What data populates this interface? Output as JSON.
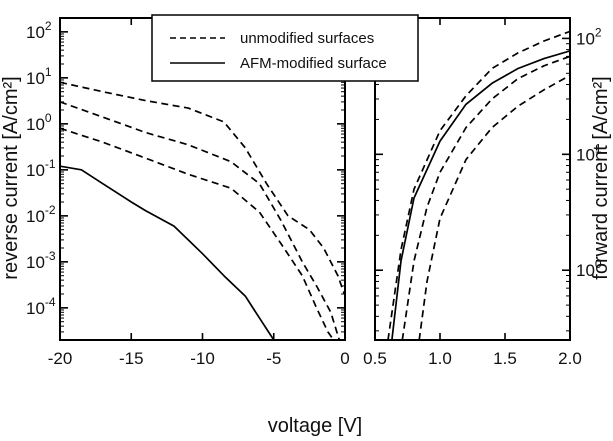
{
  "chart_data": [
    {
      "type": "line",
      "panel": "reverse",
      "xlabel": "voltage [V]",
      "ylabel": "reverse current [A/cm²]",
      "yscale": "log",
      "xlim": [
        -20,
        0
      ],
      "ylim": [
        2e-05,
        200
      ],
      "x_ticks": [
        "-20",
        "-15",
        "-10",
        "-5",
        "0"
      ],
      "x_tick_values": [
        -20,
        -15,
        -10,
        -5,
        0
      ],
      "y_ticks": [
        {
          "value": 0.0001,
          "mantissa": "10",
          "exp": "-4"
        },
        {
          "value": 0.001,
          "mantissa": "10",
          "exp": "-3"
        },
        {
          "value": 0.01,
          "mantissa": "10",
          "exp": "-2"
        },
        {
          "value": 0.1,
          "mantissa": "10",
          "exp": "-1"
        },
        {
          "value": 1,
          "mantissa": "10",
          "exp": "0"
        },
        {
          "value": 10,
          "mantissa": "10",
          "exp": "1"
        },
        {
          "value": 100,
          "mantissa": "10",
          "exp": "2"
        }
      ],
      "series": [
        {
          "name": "unmodified surfaces",
          "style": "dashed",
          "points": [
            [
              -20,
              8
            ],
            [
              -17,
              5
            ],
            [
              -14,
              3.2
            ],
            [
              -11,
              2.2
            ],
            [
              -8.5,
              1.1
            ],
            [
              -7,
              0.3
            ],
            [
              -5.5,
              0.05
            ],
            [
              -4,
              0.01
            ],
            [
              -2.5,
              0.005
            ],
            [
              -1.5,
              0.002
            ],
            [
              -0.5,
              0.0005
            ],
            [
              -0.05,
              0.0002
            ]
          ]
        },
        {
          "name": "unmodified surfaces",
          "style": "dashed",
          "points": [
            [
              -20,
              3
            ],
            [
              -17,
              1.4
            ],
            [
              -14,
              0.65
            ],
            [
              -11,
              0.35
            ],
            [
              -8,
              0.15
            ],
            [
              -6,
              0.05
            ],
            [
              -4.5,
              0.008
            ],
            [
              -3,
              0.001
            ],
            [
              -2,
              0.0003
            ],
            [
              -1,
              8e-05
            ],
            [
              -0.4,
              2e-05
            ]
          ]
        },
        {
          "name": "unmodified surfaces",
          "style": "dashed",
          "points": [
            [
              -20,
              0.8
            ],
            [
              -17,
              0.4
            ],
            [
              -14,
              0.18
            ],
            [
              -11,
              0.08
            ],
            [
              -8,
              0.04
            ],
            [
              -6,
              0.012
            ],
            [
              -4.5,
              0.0025
            ],
            [
              -3,
              0.0005
            ],
            [
              -2,
              0.0001
            ],
            [
              -1.2,
              3e-05
            ],
            [
              -0.8,
              2e-05
            ]
          ]
        },
        {
          "name": "AFM-modified surface",
          "style": "solid",
          "points": [
            [
              -20,
              0.12
            ],
            [
              -18.5,
              0.1
            ],
            [
              -17,
              0.05
            ],
            [
              -15,
              0.02
            ],
            [
              -14,
              0.013
            ],
            [
              -12,
              0.006
            ],
            [
              -10,
              0.0015
            ],
            [
              -8.5,
              0.0005
            ],
            [
              -7,
              0.00018
            ],
            [
              -6,
              6e-05
            ],
            [
              -5,
              2e-05
            ]
          ]
        }
      ]
    },
    {
      "type": "line",
      "panel": "forward",
      "xlabel": "voltage [V]",
      "ylabel": "forward current [A/cm²]",
      "yscale": "log",
      "xlim": [
        0.5,
        2.0
      ],
      "ylim": [
        0.25,
        150
      ],
      "x_ticks": [
        "0.5",
        "1.0",
        "1.5",
        "2.0"
      ],
      "x_tick_values": [
        0.5,
        1.0,
        1.5,
        2.0
      ],
      "y_ticks": [
        {
          "value": 1,
          "mantissa": "10",
          "exp": "0"
        },
        {
          "value": 10,
          "mantissa": "10",
          "exp": "1"
        },
        {
          "value": 100,
          "mantissa": "10",
          "exp": "2"
        }
      ],
      "series": [
        {
          "name": "unmodified surfaces",
          "style": "dashed",
          "points": [
            [
              0.6,
              0.25
            ],
            [
              0.7,
              1.5
            ],
            [
              0.8,
              5
            ],
            [
              1.0,
              16
            ],
            [
              1.2,
              32
            ],
            [
              1.4,
              55
            ],
            [
              1.6,
              75
            ],
            [
              1.8,
              95
            ],
            [
              2.0,
              115
            ]
          ]
        },
        {
          "name": "unmodified surfaces",
          "style": "dashed",
          "points": [
            [
              0.71,
              0.25
            ],
            [
              0.8,
              1.2
            ],
            [
              0.9,
              3.5
            ],
            [
              1.0,
              7
            ],
            [
              1.2,
              17
            ],
            [
              1.4,
              30
            ],
            [
              1.6,
              45
            ],
            [
              1.8,
              58
            ],
            [
              2.0,
              70
            ]
          ]
        },
        {
          "name": "unmodified surfaces",
          "style": "dashed",
          "points": [
            [
              0.84,
              0.25
            ],
            [
              0.9,
              0.8
            ],
            [
              1.0,
              2.8
            ],
            [
              1.2,
              9
            ],
            [
              1.4,
              17
            ],
            [
              1.6,
              26
            ],
            [
              1.8,
              36
            ],
            [
              2.0,
              48
            ]
          ]
        },
        {
          "name": "AFM-modified surface",
          "style": "solid",
          "points": [
            [
              0.63,
              0.25
            ],
            [
              0.7,
              1.2
            ],
            [
              0.8,
              4.2
            ],
            [
              1.0,
              13
            ],
            [
              1.2,
              27
            ],
            [
              1.4,
              41
            ],
            [
              1.6,
              55
            ],
            [
              1.8,
              67
            ],
            [
              2.0,
              78
            ]
          ]
        }
      ]
    }
  ],
  "legend": {
    "items": [
      {
        "label": "unmodified surfaces",
        "style": "dashed"
      },
      {
        "label": "AFM-modified surface",
        "style": "solid"
      }
    ]
  }
}
